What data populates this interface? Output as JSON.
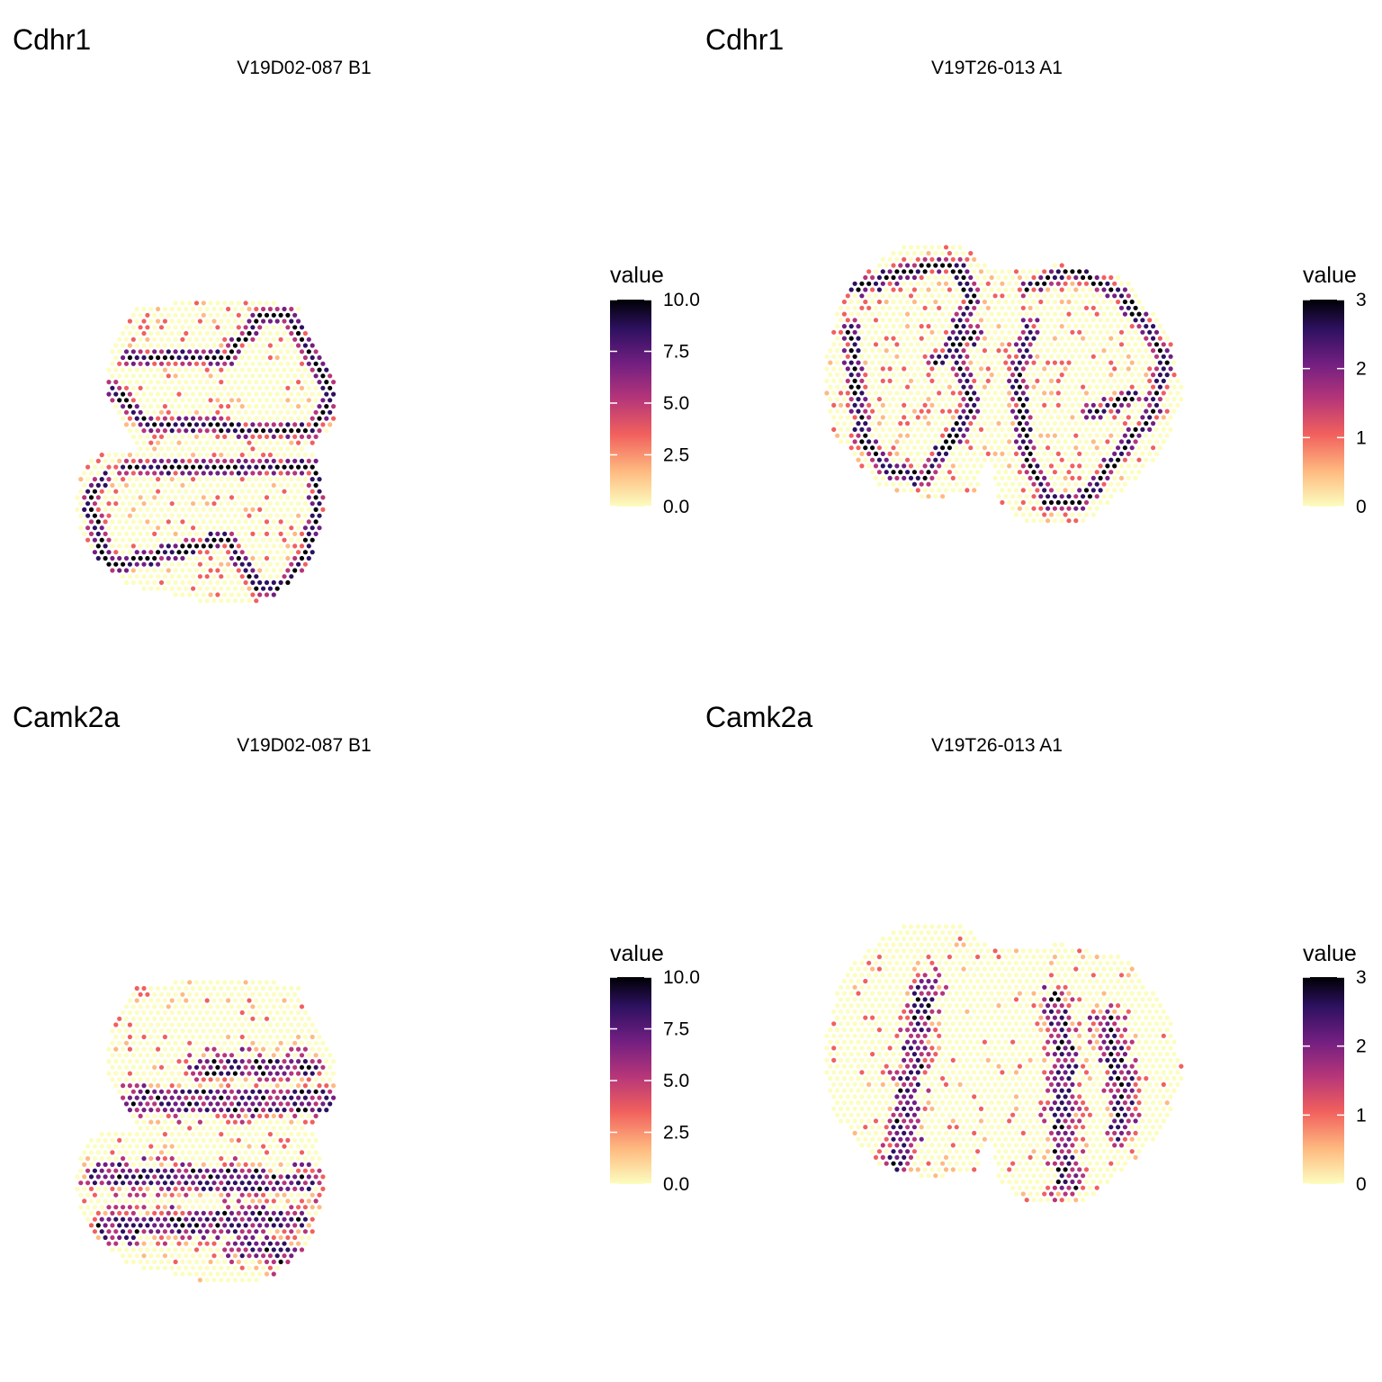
{
  "colors": {
    "background": "#ffffff",
    "scale": [
      "#FCFDBF",
      "#FEBA80",
      "#F1605D",
      "#B63679",
      "#721F81",
      "#2D1160",
      "#000004"
    ],
    "scale_name": "magma (reversed)"
  },
  "chart_data": [
    {
      "type": "scatter",
      "title": "Cdhr1",
      "subtitle": "V19D02-087  B1",
      "legend": {
        "title": "value",
        "ticks": [
          "0.0",
          "2.5",
          "5.0",
          "7.5",
          "10.0"
        ],
        "range": [
          0,
          10
        ]
      },
      "tissue": "two stacked hexagonal tissue sections",
      "pattern": "high values (8-10) along a continuous ring/band that snakes through both sections; 1-4 along the band edges; interior mostly 0",
      "grid": false
    },
    {
      "type": "scatter",
      "title": "Cdhr1",
      "subtitle": "V19T26-013  A1",
      "legend": {
        "title": "value",
        "ticks": [
          "0",
          "1",
          "2",
          "3"
        ],
        "range": [
          0,
          3
        ]
      },
      "tissue": "two side-by-side rounded tissue sections",
      "pattern": "values 2-3 along thin zig-zag lines tracing the olfactory bulb layers; scattered 1s; background 0",
      "grid": false
    },
    {
      "type": "scatter",
      "title": "Camk2a",
      "subtitle": "V19D02-087  B1",
      "legend": {
        "title": "value",
        "ticks": [
          "0.0",
          "2.5",
          "5.0",
          "7.5",
          "10.0"
        ],
        "range": [
          0,
          10
        ]
      },
      "tissue": "two stacked hexagonal tissue sections",
      "pattern": "broad horizontal bands of 4-10 in the middle of each section; periphery 0-2",
      "grid": false
    },
    {
      "type": "scatter",
      "title": "Camk2a",
      "subtitle": "V19T26-013  A1",
      "legend": {
        "title": "value",
        "ticks": [
          "0",
          "1",
          "2",
          "3"
        ],
        "range": [
          0,
          3
        ]
      },
      "tissue": "two side-by-side rounded tissue sections",
      "pattern": "sparse vertical streaks of 1-3 inside each section; most spots 0",
      "grid": false
    }
  ]
}
